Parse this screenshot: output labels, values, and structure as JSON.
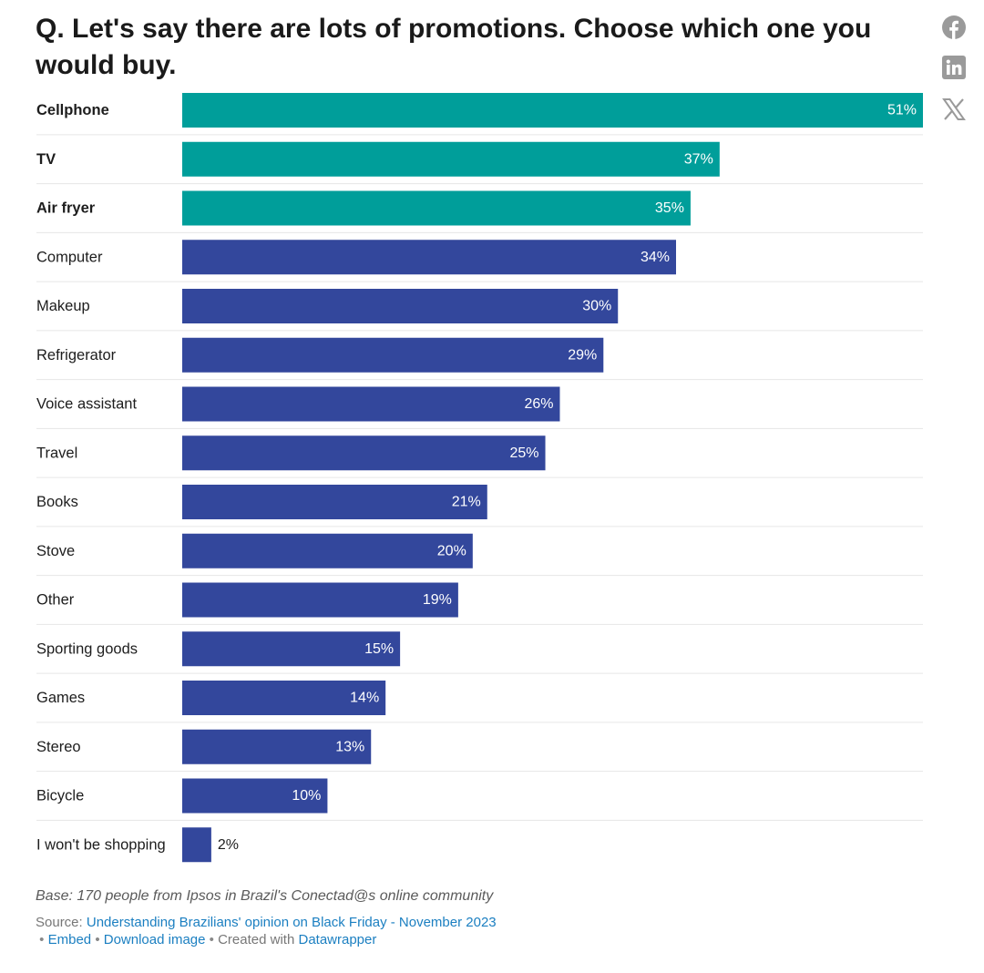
{
  "title": "Q. Let's say there are lots of promotions. Choose which one you would buy.",
  "social": {
    "facebook": "facebook-icon",
    "linkedin": "linkedin-icon",
    "x": "x-icon"
  },
  "colors": {
    "highlight": "#009e9a",
    "base": "#33479c",
    "divider": "#e6e6e6",
    "icon": "#9a9a9a"
  },
  "chart_data": {
    "type": "bar",
    "orientation": "horizontal",
    "title": "Q. Let's say there are lots of promotions. Choose which one you would buy.",
    "xlabel": "",
    "ylabel": "",
    "xlim": [
      0,
      51
    ],
    "unit": "%",
    "grid": false,
    "categories": [
      "Cellphone",
      "TV",
      "Air fryer",
      "Computer",
      "Makeup",
      "Refrigerator",
      "Voice assistant",
      "Travel",
      "Books",
      "Stove",
      "Other",
      "Sporting goods",
      "Games",
      "Stereo",
      "Bicycle",
      "I won't be shopping"
    ],
    "values": [
      51,
      37,
      35,
      34,
      30,
      29,
      26,
      25,
      21,
      20,
      19,
      15,
      14,
      13,
      10,
      2
    ],
    "highlighted": [
      "Cellphone",
      "TV",
      "Air fryer"
    ]
  },
  "notes": "Base: 170 people from Ipsos in Brazil's Conectad@s online community",
  "footer": {
    "source_label": "Source: ",
    "source_link": "Understanding Brazilians' opinion on Black Friday - November 2023",
    "bullet": "•",
    "embed": "Embed",
    "download": "Download image",
    "created_with": "Created with",
    "tool": "Datawrapper"
  }
}
